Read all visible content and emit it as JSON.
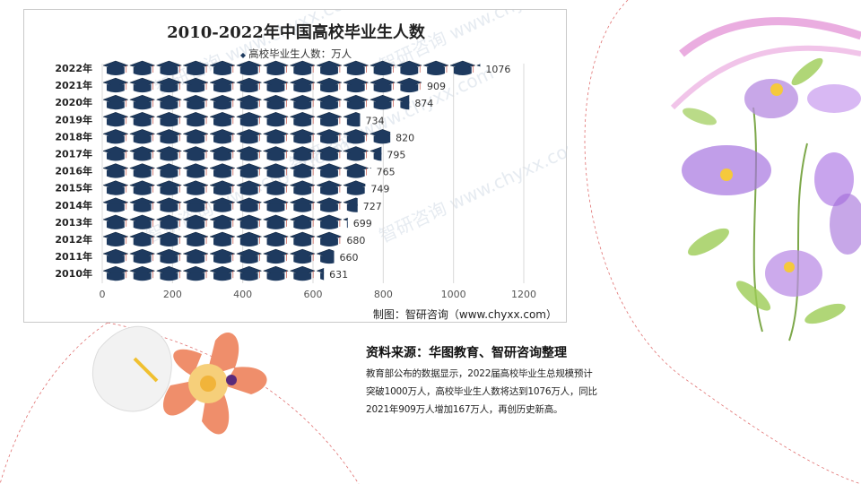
{
  "chart_data": {
    "type": "bar",
    "orientation": "horizontal",
    "title": "2010-2022年中国高校毕业生人数",
    "legend": "高校毕业生人数：万人",
    "categories": [
      "2022年",
      "2021年",
      "2020年",
      "2019年",
      "2018年",
      "2017年",
      "2016年",
      "2015年",
      "2014年",
      "2013年",
      "2012年",
      "2011年",
      "2010年"
    ],
    "values": [
      1076,
      909,
      874,
      734,
      820,
      795,
      765,
      749,
      727,
      699,
      680,
      660,
      631
    ],
    "xlim": [
      0,
      1200
    ],
    "xticks": [
      "0",
      "200",
      "400",
      "600",
      "800",
      "1000",
      "1200"
    ],
    "grid": true,
    "marker": "graduation-cap",
    "colors": {
      "cap": "#1e3a5f",
      "cap_edge": "#0f2238",
      "grid": "#d9d9d9"
    }
  },
  "credit": "制图：智研咨询（www.chyxx.com）",
  "source": {
    "title": "资料来源：华图教育、智研咨询整理",
    "body": "教育部公布的数据显示，2022届高校毕业生总规模预计突破1000万人，高校毕业生人数将达到1076万人，同比2021年909万人增加167万人，再创历史新高。"
  },
  "watermark": "智研咨询 www.chyxx.com"
}
